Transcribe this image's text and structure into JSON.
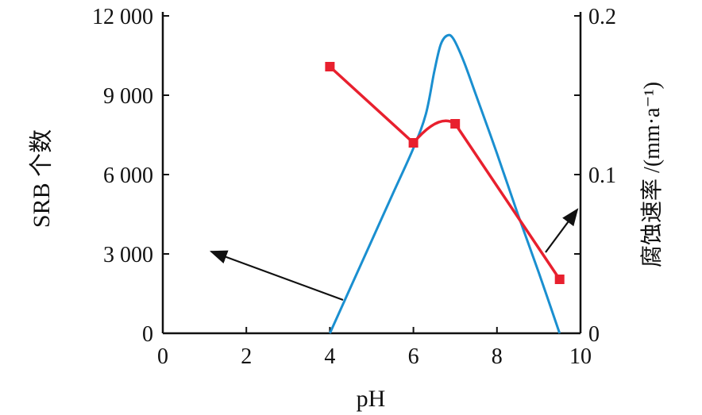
{
  "chart_data": {
    "type": "line",
    "title": "",
    "xlabel": "pH",
    "ylabel_left": "SRB 个数",
    "ylabel_right": "腐蚀速率 /(mm·a⁻¹)",
    "xlim": [
      0,
      10
    ],
    "ylim_left": [
      0,
      12000
    ],
    "ylim_right": [
      0,
      0.2
    ],
    "x_ticks": [
      "0",
      "2",
      "4",
      "6",
      "8",
      "10"
    ],
    "y_left_ticks": [
      "0",
      "3 000",
      "6 000",
      "9 000",
      "12 000"
    ],
    "y_right_ticks": [
      "0",
      "0.1",
      "0.2"
    ],
    "grid": false,
    "series": [
      {
        "name": "SRB count",
        "axis": "left",
        "color": "#1a8fd0",
        "marker": "none",
        "x": [
          4.0,
          4.5,
          5.0,
          5.5,
          6.0,
          6.3,
          6.5,
          6.65,
          6.8,
          6.95,
          7.2,
          7.5,
          8.0,
          8.5,
          9.0,
          9.5
        ],
        "y": [
          0,
          1750,
          3500,
          5250,
          7000,
          8300,
          9900,
          10900,
          11250,
          11150,
          10300,
          9000,
          6800,
          4500,
          2300,
          0
        ]
      },
      {
        "name": "Corrosion rate",
        "axis": "right",
        "color": "#e8202e",
        "marker": "square",
        "x": [
          4.0,
          6.0,
          7.0,
          9.5
        ],
        "y": [
          0.168,
          0.12,
          0.132,
          0.034
        ]
      }
    ],
    "annotations": [
      {
        "type": "arrow",
        "from_series": "SRB count",
        "points_to": "left axis"
      },
      {
        "type": "arrow",
        "from_series": "Corrosion rate",
        "points_to": "right axis"
      }
    ]
  }
}
